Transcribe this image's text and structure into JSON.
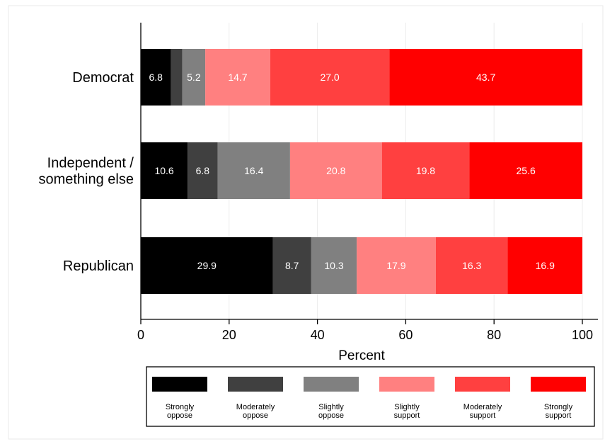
{
  "chart_data": {
    "type": "bar",
    "orientation": "horizontal",
    "stacked": true,
    "categories": [
      [
        "Democrat"
      ],
      [
        "Independent /",
        "something else"
      ],
      [
        "Republican"
      ]
    ],
    "series": [
      {
        "name": [
          "Strongly",
          "oppose"
        ],
        "color": "#000000",
        "values": [
          6.8,
          10.6,
          29.9
        ]
      },
      {
        "name": [
          "Moderately",
          "oppose"
        ],
        "color": "#404040",
        "values": [
          2.6,
          6.8,
          8.7
        ]
      },
      {
        "name": [
          "Slightly",
          "oppose"
        ],
        "color": "#808080",
        "values": [
          5.2,
          16.4,
          10.3
        ]
      },
      {
        "name": [
          "Slightly",
          "support"
        ],
        "color": "#ff8080",
        "values": [
          14.7,
          20.8,
          17.9
        ]
      },
      {
        "name": [
          "Moderately",
          "support"
        ],
        "color": "#ff4040",
        "values": [
          27.0,
          19.8,
          16.3
        ]
      },
      {
        "name": [
          "Strongly",
          "support"
        ],
        "color": "#ff0000",
        "values": [
          43.7,
          25.6,
          16.9
        ]
      }
    ],
    "data_labels": [
      [
        "6.8",
        "",
        "5.2",
        "14.7",
        "27.0",
        "43.7"
      ],
      [
        "10.6",
        "6.8",
        "16.4",
        "20.8",
        "19.8",
        "25.6"
      ],
      [
        "29.9",
        "8.7",
        "10.3",
        "17.9",
        "16.3",
        "16.9"
      ]
    ],
    "xlabel": "Percent",
    "xlim": [
      0,
      100
    ],
    "xticks": [
      0,
      20,
      40,
      60,
      80,
      100
    ],
    "legend_position": "bottom",
    "grid": true
  }
}
